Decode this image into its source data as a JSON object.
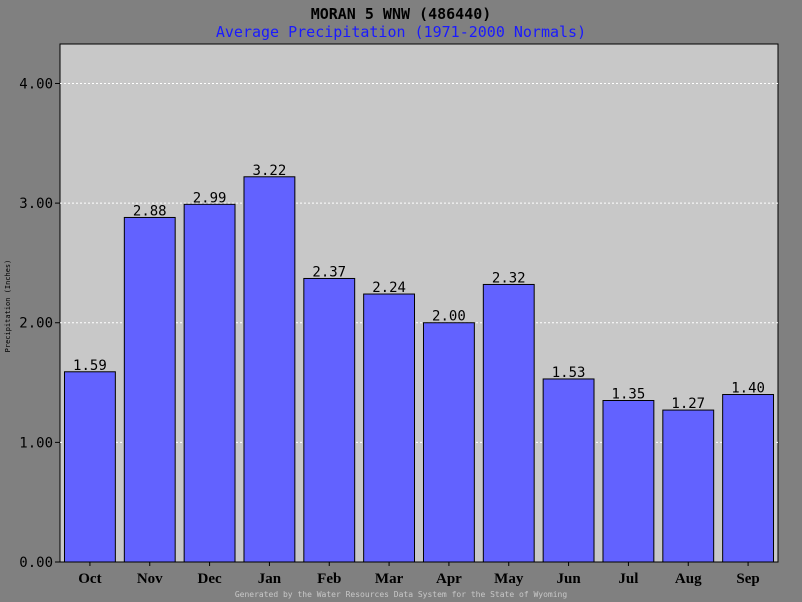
{
  "title": "MORAN 5 WNW (486440)",
  "subtitle": "Average Precipitation (1971-2000 Normals)",
  "footer": "Generated by the Water Resources Data System for the State of Wyoming",
  "colors": {
    "background": "#808080",
    "plot": "#c8c8c8",
    "bar": "#6262ff",
    "subtitle": "#1a1aff"
  },
  "chart_data": {
    "type": "bar",
    "title": "MORAN 5 WNW (486440)",
    "subtitle": "Average Precipitation (1971-2000 Normals)",
    "xlabel": "",
    "ylabel": "Precipitation (Inches)",
    "categories": [
      "Oct",
      "Nov",
      "Dec",
      "Jan",
      "Feb",
      "Mar",
      "Apr",
      "May",
      "Jun",
      "Jul",
      "Aug",
      "Sep"
    ],
    "values": [
      1.59,
      2.88,
      2.99,
      3.22,
      2.37,
      2.24,
      2.0,
      2.32,
      1.53,
      1.35,
      1.27,
      1.4
    ],
    "value_labels": [
      "1.59",
      "2.88",
      "2.99",
      "3.22",
      "2.37",
      "2.24",
      "2.00",
      "2.32",
      "1.53",
      "1.35",
      "1.27",
      "1.40"
    ],
    "ylim": [
      0,
      4.33
    ],
    "yticks": [
      0,
      1,
      2,
      3,
      4
    ],
    "ytick_labels": [
      "0.00",
      "1.00",
      "2.00",
      "3.00",
      "4.00"
    ],
    "grid": true
  }
}
